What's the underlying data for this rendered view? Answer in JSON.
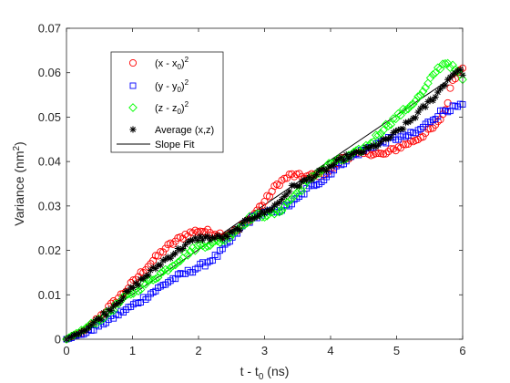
{
  "chart_data": {
    "type": "scatter",
    "xlabel": {
      "main": "t - t",
      "sub": "0",
      "unit": " (ns)"
    },
    "ylabel": {
      "main": "Variance (nm",
      "sup": "2",
      "close": ")"
    },
    "xlim": [
      0,
      6
    ],
    "ylim": [
      0,
      0.07
    ],
    "xticks": [
      0,
      1,
      2,
      3,
      4,
      5,
      6
    ],
    "xtick_labels": [
      "0",
      "1",
      "2",
      "3",
      "4",
      "5",
      "6"
    ],
    "yticks": [
      0,
      0.01,
      0.02,
      0.03,
      0.04,
      0.05,
      0.06,
      0.07
    ],
    "ytick_labels": [
      "0",
      "0.01",
      "0.02",
      "0.03",
      "0.04",
      "0.05",
      "0.06",
      "0.07"
    ],
    "grid": false,
    "legend_position": "top-left",
    "colors": {
      "x": "#ff0000",
      "y": "#0000ff",
      "z": "#00ff00",
      "avg": "#000000",
      "fit": "#000000"
    },
    "legend": [
      {
        "key": "x",
        "marker": "circle",
        "text": "(x - x",
        "sub": "0",
        "close": ")",
        "sup": "2"
      },
      {
        "key": "y",
        "marker": "square",
        "text": "(y - y",
        "sub": "0",
        "close": ")",
        "sup": "2"
      },
      {
        "key": "z",
        "marker": "diamond",
        "text": "(z - z",
        "sub": "0",
        "close": ")",
        "sup": "2"
      },
      {
        "key": "avg",
        "marker": "asterisk",
        "text": "Average (x,z)"
      },
      {
        "key": "fit",
        "marker": "line",
        "text": "Slope Fit"
      }
    ],
    "series": [
      {
        "key": "x",
        "marker": "circle",
        "anchors": [
          [
            0,
            0
          ],
          [
            0.3,
            0.002
          ],
          [
            0.6,
            0.0065
          ],
          [
            0.9,
            0.011
          ],
          [
            1.2,
            0.016
          ],
          [
            1.5,
            0.0205
          ],
          [
            1.8,
            0.0235
          ],
          [
            2.0,
            0.0245
          ],
          [
            2.2,
            0.024
          ],
          [
            2.4,
            0.0235
          ],
          [
            2.6,
            0.0245
          ],
          [
            2.8,
            0.0275
          ],
          [
            3.0,
            0.031
          ],
          [
            3.2,
            0.035
          ],
          [
            3.4,
            0.037
          ],
          [
            3.6,
            0.0365
          ],
          [
            3.8,
            0.037
          ],
          [
            4.0,
            0.038
          ],
          [
            4.2,
            0.041
          ],
          [
            4.4,
            0.0415
          ],
          [
            4.6,
            0.042
          ],
          [
            4.8,
            0.0415
          ],
          [
            5.0,
            0.043
          ],
          [
            5.3,
            0.045
          ],
          [
            5.6,
            0.048
          ],
          [
            5.75,
            0.052
          ],
          [
            5.85,
            0.0585
          ],
          [
            6.0,
            0.0615
          ]
        ]
      },
      {
        "key": "y",
        "marker": "square",
        "anchors": [
          [
            0,
            0
          ],
          [
            0.3,
            0.0015
          ],
          [
            0.6,
            0.004
          ],
          [
            1.0,
            0.0075
          ],
          [
            1.3,
            0.0105
          ],
          [
            1.6,
            0.0135
          ],
          [
            1.9,
            0.0155
          ],
          [
            2.1,
            0.017
          ],
          [
            2.3,
            0.019
          ],
          [
            2.5,
            0.0225
          ],
          [
            2.7,
            0.026
          ],
          [
            2.9,
            0.028
          ],
          [
            3.1,
            0.0285
          ],
          [
            3.3,
            0.0295
          ],
          [
            3.5,
            0.0315
          ],
          [
            3.7,
            0.0345
          ],
          [
            3.9,
            0.036
          ],
          [
            4.1,
            0.039
          ],
          [
            4.3,
            0.041
          ],
          [
            4.5,
            0.0425
          ],
          [
            4.7,
            0.044
          ],
          [
            4.9,
            0.045
          ],
          [
            5.1,
            0.0455
          ],
          [
            5.3,
            0.0465
          ],
          [
            5.5,
            0.049
          ],
          [
            5.7,
            0.0515
          ],
          [
            6.0,
            0.0525
          ]
        ]
      },
      {
        "key": "z",
        "marker": "diamond",
        "anchors": [
          [
            0,
            0
          ],
          [
            0.3,
            0.0025
          ],
          [
            0.6,
            0.0055
          ],
          [
            0.9,
            0.0095
          ],
          [
            1.2,
            0.0125
          ],
          [
            1.5,
            0.0155
          ],
          [
            1.8,
            0.019
          ],
          [
            2.0,
            0.021
          ],
          [
            2.2,
            0.0215
          ],
          [
            2.4,
            0.0225
          ],
          [
            2.6,
            0.025
          ],
          [
            2.8,
            0.0275
          ],
          [
            3.0,
            0.028
          ],
          [
            3.2,
            0.0285
          ],
          [
            3.4,
            0.0315
          ],
          [
            3.6,
            0.0345
          ],
          [
            3.8,
            0.0375
          ],
          [
            4.0,
            0.0395
          ],
          [
            4.2,
            0.0405
          ],
          [
            4.4,
            0.042
          ],
          [
            4.6,
            0.044
          ],
          [
            4.8,
            0.0475
          ],
          [
            5.0,
            0.05
          ],
          [
            5.2,
            0.0525
          ],
          [
            5.4,
            0.0555
          ],
          [
            5.6,
            0.0605
          ],
          [
            5.75,
            0.0625
          ],
          [
            5.9,
            0.0605
          ],
          [
            6.0,
            0.0585
          ]
        ]
      },
      {
        "key": "avg",
        "marker": "asterisk",
        "anchors": [
          [
            0,
            0
          ],
          [
            0.3,
            0.0023
          ],
          [
            0.6,
            0.006
          ],
          [
            0.9,
            0.0102
          ],
          [
            1.2,
            0.0142
          ],
          [
            1.5,
            0.018
          ],
          [
            1.8,
            0.0212
          ],
          [
            2.0,
            0.0228
          ],
          [
            2.2,
            0.0228
          ],
          [
            2.4,
            0.023
          ],
          [
            2.6,
            0.0248
          ],
          [
            2.8,
            0.0275
          ],
          [
            3.0,
            0.0285
          ],
          [
            3.2,
            0.0305
          ],
          [
            3.4,
            0.034
          ],
          [
            3.6,
            0.0355
          ],
          [
            3.8,
            0.0372
          ],
          [
            4.0,
            0.0388
          ],
          [
            4.2,
            0.0408
          ],
          [
            4.4,
            0.0418
          ],
          [
            4.6,
            0.043
          ],
          [
            4.8,
            0.0445
          ],
          [
            5.0,
            0.0465
          ],
          [
            5.2,
            0.049
          ],
          [
            5.4,
            0.052
          ],
          [
            5.6,
            0.055
          ],
          [
            5.75,
            0.058
          ],
          [
            5.9,
            0.0605
          ],
          [
            6.0,
            0.06
          ]
        ]
      }
    ],
    "fit": {
      "x": [
        0,
        6
      ],
      "y": [
        0,
        0.0605
      ]
    }
  }
}
